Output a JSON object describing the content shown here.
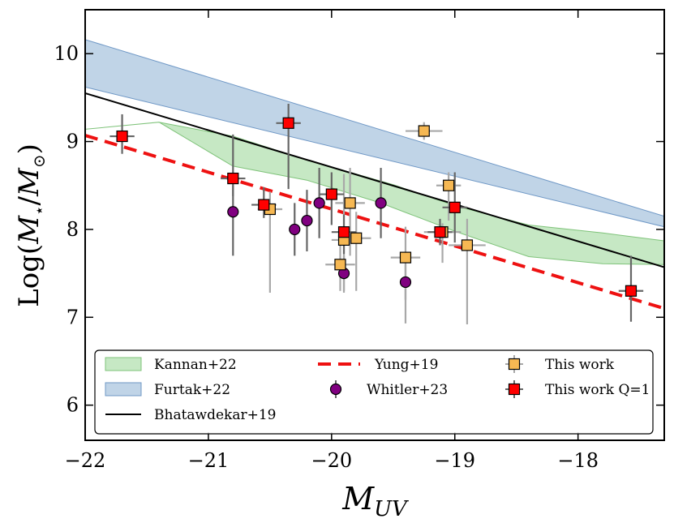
{
  "chart_data": {
    "type": "scatter",
    "title": "",
    "xlabel": {
      "base": "M",
      "sub": "UV"
    },
    "ylabel": {
      "prefix": "Log(",
      "m": "M",
      "star": "⋆",
      "slash": "/",
      "m2": "M",
      "sun": "⊙",
      "suffix": ")"
    },
    "xlim": [
      -22.0,
      -17.3
    ],
    "ylim": [
      5.6,
      10.5
    ],
    "x_ticks": [
      -22,
      -21,
      -20,
      -19,
      -18
    ],
    "x_tick_labels": [
      "−22",
      "−21",
      "−20",
      "−19",
      "−18"
    ],
    "y_ticks": [
      6,
      7,
      8,
      9,
      10
    ],
    "y_tick_labels": [
      "6",
      "7",
      "8",
      "9",
      "10"
    ],
    "legend_position": "bottom",
    "series": [
      {
        "name": "Kannan+22",
        "kind": "band",
        "color": "#98d593",
        "edge": "#7fc37a",
        "upper": [
          [
            -22.0,
            9.14
          ],
          [
            -21.4,
            9.22
          ],
          [
            -20.8,
            9.06
          ],
          [
            -20.2,
            8.79
          ],
          [
            -19.5,
            8.51
          ],
          [
            -19.0,
            8.27
          ],
          [
            -18.4,
            8.05
          ],
          [
            -17.8,
            7.96
          ],
          [
            -17.3,
            7.87
          ]
        ],
        "lower": [
          [
            -21.4,
            9.22
          ],
          [
            -20.8,
            8.72
          ],
          [
            -20.2,
            8.56
          ],
          [
            -19.6,
            8.3
          ],
          [
            -19.0,
            7.98
          ],
          [
            -18.4,
            7.69
          ],
          [
            -17.8,
            7.61
          ],
          [
            -17.3,
            7.6
          ]
        ]
      },
      {
        "name": "Furtak+22",
        "kind": "band",
        "color": "#8cb0d4",
        "edge": "#6f98c6",
        "upper": [
          [
            -22.0,
            10.16
          ],
          [
            -17.3,
            8.15
          ]
        ],
        "lower": [
          [
            -22.0,
            9.62
          ],
          [
            -17.3,
            8.03
          ]
        ]
      },
      {
        "name": "Bhatawdekar+19",
        "kind": "line",
        "color": "#000000",
        "points": [
          [
            -22.0,
            9.55
          ],
          [
            -17.3,
            7.57
          ]
        ]
      },
      {
        "name": "Yung+19",
        "kind": "dashed",
        "color": "#ee1111",
        "points": [
          [
            -22.0,
            9.07
          ],
          [
            -17.3,
            7.1
          ]
        ]
      },
      {
        "name": "Whitler+23",
        "kind": "circle",
        "color": "#800080",
        "points": [
          {
            "x": -20.8,
            "y": 8.2,
            "yerr": [
              0.5,
              0.3
            ]
          },
          {
            "x": -20.3,
            "y": 8.0,
            "yerr": [
              0.3,
              0.3
            ]
          },
          {
            "x": -20.2,
            "y": 8.1,
            "yerr": [
              0.35,
              0.35
            ]
          },
          {
            "x": -20.1,
            "y": 8.3,
            "yerr": [
              0.4,
              0.4
            ]
          },
          {
            "x": -19.9,
            "y": 7.5,
            "yerr": [
              0.2,
              0.2
            ]
          },
          {
            "x": -19.6,
            "y": 8.3,
            "yerr": [
              0.4,
              0.4
            ]
          },
          {
            "x": -19.4,
            "y": 7.4,
            "yerr": [
              0.2,
              0.2
            ]
          }
        ]
      },
      {
        "name": "This work",
        "kind": "square",
        "color": "#f6b853",
        "points": [
          {
            "x": -20.5,
            "y": 8.23,
            "xerr": 0.1,
            "yerr": [
              0.95,
              0.2
            ]
          },
          {
            "x": -19.93,
            "y": 7.6,
            "xerr": 0.12,
            "yerr": [
              0.3,
              0.25
            ]
          },
          {
            "x": -19.9,
            "y": 7.88,
            "xerr": 0.1,
            "yerr": [
              0.6,
              0.75
            ]
          },
          {
            "x": -19.85,
            "y": 8.3,
            "xerr": 0.12,
            "yerr": [
              0.6,
              0.4
            ]
          },
          {
            "x": -19.8,
            "y": 7.9,
            "xerr": 0.12,
            "yerr": [
              0.6,
              0.3
            ]
          },
          {
            "x": -19.4,
            "y": 7.68,
            "xerr": 0.12,
            "yerr": [
              0.75,
              0.35
            ]
          },
          {
            "x": -19.25,
            "y": 9.12,
            "xerr": 0.15,
            "yerr": [
              0.1,
              0.1
            ]
          },
          {
            "x": -19.1,
            "y": 7.97,
            "xerr": 0.15,
            "yerr": [
              0.35,
              0.1
            ]
          },
          {
            "x": -19.05,
            "y": 8.5,
            "xerr": 0.1,
            "yerr": [
              0.4,
              0.15
            ]
          },
          {
            "x": -18.9,
            "y": 7.82,
            "xerr": 0.15,
            "yerr": [
              0.9,
              0.3
            ]
          }
        ]
      },
      {
        "name": "This work Q=1",
        "kind": "square",
        "color": "#ff0000",
        "points": [
          {
            "x": -21.7,
            "y": 9.06,
            "xerr": 0.1,
            "yerr": [
              0.2,
              0.25
            ]
          },
          {
            "x": -20.8,
            "y": 8.58,
            "xerr": 0.1,
            "yerr": [
              0.2,
              0.5
            ]
          },
          {
            "x": -20.55,
            "y": 8.28,
            "xerr": 0.1,
            "yerr": [
              0.15,
              0.2
            ]
          },
          {
            "x": -20.35,
            "y": 9.21,
            "xerr": 0.1,
            "yerr": [
              0.75,
              0.22
            ]
          },
          {
            "x": -20.0,
            "y": 8.4,
            "xerr": 0.1,
            "yerr": [
              0.35,
              0.25
            ]
          },
          {
            "x": -19.9,
            "y": 7.97,
            "xerr": 0.1,
            "yerr": [
              0.25,
              0.2
            ]
          },
          {
            "x": -19.12,
            "y": 7.97,
            "xerr": 0.1,
            "yerr": [
              0.15,
              0.15
            ]
          },
          {
            "x": -19.0,
            "y": 8.25,
            "xerr": 0.1,
            "yerr": [
              0.4,
              0.4
            ]
          },
          {
            "x": -17.57,
            "y": 7.3,
            "xerr": 0.1,
            "yerr": [
              0.35,
              0.4
            ]
          }
        ]
      }
    ],
    "legend": [
      {
        "label": "Kannan+22",
        "series": "Kannan+22"
      },
      {
        "label": "Furtak+22",
        "series": "Furtak+22"
      },
      {
        "label": "Bhatawdekar+19",
        "series": "Bhatawdekar+19"
      },
      {
        "label": "Yung+19",
        "series": "Yung+19"
      },
      {
        "label": "Whitler+23",
        "series": "Whitler+23"
      },
      {
        "label": "This work",
        "series": "This work"
      },
      {
        "label": "This work Q=1",
        "series": "This work Q=1"
      }
    ]
  }
}
